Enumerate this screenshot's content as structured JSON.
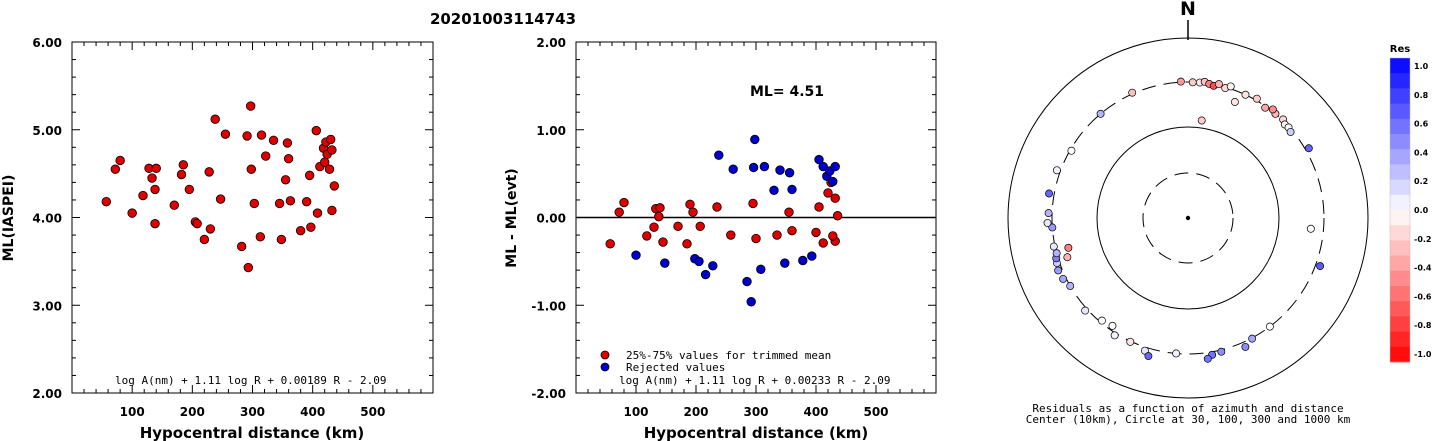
{
  "title": "20201003114743",
  "charts": [
    {
      "type": "scatter",
      "xlabel": "Hypocentral distance (km)",
      "ylabel": "ML(IASPEI)",
      "xlim": [
        0,
        600
      ],
      "ylim": [
        2.0,
        6.0
      ],
      "xticks": [
        "100",
        "200",
        "300",
        "400",
        "500"
      ],
      "yticks": [
        "2.00",
        "3.00",
        "4.00",
        "5.00",
        "6.00"
      ],
      "formula": "log A(nm) + 1.11 log R + 0.00189 R - 2.09",
      "points": [
        [
          57,
          4.18
        ],
        [
          72,
          4.55
        ],
        [
          80,
          4.65
        ],
        [
          100,
          4.05
        ],
        [
          118,
          4.25
        ],
        [
          128,
          4.56
        ],
        [
          133,
          4.45
        ],
        [
          140,
          4.56
        ],
        [
          138,
          3.93
        ],
        [
          138,
          4.32
        ],
        [
          170,
          4.14
        ],
        [
          182,
          4.49
        ],
        [
          185,
          4.6
        ],
        [
          195,
          4.32
        ],
        [
          205,
          3.95
        ],
        [
          208,
          3.93
        ],
        [
          220,
          3.75
        ],
        [
          228,
          4.52
        ],
        [
          230,
          3.87
        ],
        [
          238,
          5.12
        ],
        [
          247,
          4.21
        ],
        [
          255,
          4.95
        ],
        [
          282,
          3.67
        ],
        [
          291,
          4.93
        ],
        [
          293,
          3.43
        ],
        [
          297,
          5.27
        ],
        [
          298,
          4.55
        ],
        [
          303,
          4.16
        ],
        [
          313,
          3.78
        ],
        [
          315,
          4.94
        ],
        [
          322,
          4.7
        ],
        [
          335,
          4.88
        ],
        [
          345,
          4.16
        ],
        [
          348,
          3.75
        ],
        [
          355,
          4.43
        ],
        [
          358,
          4.85
        ],
        [
          360,
          4.67
        ],
        [
          363,
          4.19
        ],
        [
          380,
          3.85
        ],
        [
          390,
          4.18
        ],
        [
          395,
          4.48
        ],
        [
          397,
          3.89
        ],
        [
          406,
          4.99
        ],
        [
          408,
          4.05
        ],
        [
          412,
          4.58
        ],
        [
          418,
          4.79
        ],
        [
          420,
          4.63
        ],
        [
          422,
          4.86
        ],
        [
          424,
          4.72
        ],
        [
          428,
          4.55
        ],
        [
          430,
          4.89
        ],
        [
          432,
          4.77
        ],
        [
          432,
          4.08
        ],
        [
          436,
          4.36
        ]
      ]
    },
    {
      "type": "scatter",
      "xlabel": "Hypocentral distance (km)",
      "ylabel": "ML - ML(evt)",
      "xlim": [
        0,
        600
      ],
      "ylim": [
        -2.0,
        2.0
      ],
      "xticks": [
        "100",
        "200",
        "300",
        "400",
        "500"
      ],
      "yticks": [
        "-2.00",
        "-1.00",
        "0.00",
        "1.00",
        "2.00"
      ],
      "annotation": "ML= 4.51",
      "zero_line": 0.0,
      "formula": "log A(nm) + 1.11 log R + 0.00233 R - 2.09",
      "legend": [
        {
          "label": "25%-75% values for trimmed mean",
          "color": "#dd0000"
        },
        {
          "label": "Rejected values",
          "color": "#0000cc"
        }
      ],
      "series": [
        {
          "name": "25%-75% values for trimmed mean",
          "color": "#dd0000",
          "points": [
            [
              57,
              -0.3
            ],
            [
              72,
              0.06
            ],
            [
              80,
              0.17
            ],
            [
              118,
              -0.21
            ],
            [
              130,
              -0.11
            ],
            [
              133,
              0.1
            ],
            [
              138,
              0.01
            ],
            [
              140,
              0.11
            ],
            [
              145,
              -0.28
            ],
            [
              170,
              -0.1
            ],
            [
              185,
              -0.3
            ],
            [
              190,
              0.15
            ],
            [
              195,
              0.06
            ],
            [
              207,
              -0.1
            ],
            [
              235,
              0.12
            ],
            [
              258,
              -0.2
            ],
            [
              295,
              0.16
            ],
            [
              300,
              -0.24
            ],
            [
              335,
              -0.2
            ],
            [
              355,
              0.06
            ],
            [
              360,
              -0.15
            ],
            [
              400,
              -0.17
            ],
            [
              405,
              0.12
            ],
            [
              412,
              -0.29
            ],
            [
              420,
              0.28
            ],
            [
              425,
              0.4
            ],
            [
              432,
              0.22
            ],
            [
              436,
              0.02
            ],
            [
              432,
              -0.27
            ],
            [
              428,
              -0.21
            ]
          ]
        },
        {
          "name": "Rejected values",
          "color": "#0000cc",
          "points": [
            [
              100,
              -0.43
            ],
            [
              148,
              -0.52
            ],
            [
              198,
              -0.47
            ],
            [
              205,
              -0.5
            ],
            [
              216,
              -0.65
            ],
            [
              228,
              -0.55
            ],
            [
              238,
              0.71
            ],
            [
              262,
              0.55
            ],
            [
              285,
              -0.73
            ],
            [
              292,
              -0.96
            ],
            [
              296,
              0.57
            ],
            [
              298,
              0.89
            ],
            [
              308,
              -0.59
            ],
            [
              314,
              0.58
            ],
            [
              330,
              0.31
            ],
            [
              340,
              0.54
            ],
            [
              348,
              -0.52
            ],
            [
              356,
              0.51
            ],
            [
              360,
              0.32
            ],
            [
              378,
              -0.49
            ],
            [
              393,
              -0.44
            ],
            [
              405,
              0.66
            ],
            [
              412,
              0.58
            ],
            [
              418,
              0.47
            ],
            [
              423,
              0.53
            ],
            [
              428,
              0.41
            ],
            [
              432,
              0.58
            ]
          ]
        }
      ]
    },
    {
      "type": "polar",
      "north_label": "N",
      "caption_line1": "Residuals as a function of azimuth and distance",
      "caption_line2": "Center (10km), Circle at 30, 100, 300 and 1000 km",
      "colorbar_title": "Res",
      "colorbar_ticks": [
        "1.0",
        "0.8",
        "0.6",
        "0.4",
        "0.2",
        "0.0",
        "-0.2",
        "-0.4",
        "-0.6",
        "-0.8",
        "-1.0"
      ],
      "rings_km": [
        30,
        100,
        300,
        1000
      ],
      "stations": [
        {
          "az": 357,
          "dist": 305,
          "res": -0.4
        },
        {
          "az": 2,
          "dist": 298,
          "res": -0.2
        },
        {
          "az": 5,
          "dist": 300,
          "res": -0.1
        },
        {
          "az": 7,
          "dist": 310,
          "res": -0.25
        },
        {
          "az": 9,
          "dist": 298,
          "res": -0.5
        },
        {
          "az": 11,
          "dist": 290,
          "res": -0.7
        },
        {
          "az": 13,
          "dist": 312,
          "res": -0.3
        },
        {
          "az": 16,
          "dist": 294,
          "res": -0.15
        },
        {
          "az": 18,
          "dist": 320,
          "res": -0.05
        },
        {
          "az": 25,
          "dist": 300,
          "res": -0.1
        },
        {
          "az": 30,
          "dist": 315,
          "res": -0.2
        },
        {
          "az": 22,
          "dist": 230,
          "res": -0.1
        },
        {
          "az": 35,
          "dist": 290,
          "res": -0.35
        },
        {
          "az": 40,
          "dist": 300,
          "res": -0.3
        },
        {
          "az": 38,
          "dist": 315,
          "res": -0.45
        },
        {
          "az": 44,
          "dist": 308,
          "res": -0.15
        },
        {
          "az": 46,
          "dist": 290,
          "res": -0.05
        },
        {
          "az": 48,
          "dist": 295,
          "res": -0.02
        },
        {
          "az": 50,
          "dist": 285,
          "res": 0.2
        },
        {
          "az": 60,
          "dist": 330,
          "res": 0.6
        },
        {
          "az": 336,
          "dist": 310,
          "res": -0.25
        },
        {
          "az": 8,
          "dist": 120,
          "res": -0.2
        },
        {
          "az": 95,
          "dist": 220,
          "res": 0.0
        },
        {
          "az": 110,
          "dist": 340,
          "res": 0.65
        },
        {
          "az": 143,
          "dist": 300,
          "res": 0.0
        },
        {
          "az": 152,
          "dist": 305,
          "res": 0.35
        },
        {
          "az": 156,
          "dist": 345,
          "res": 0.45
        },
        {
          "az": 166,
          "dist": 315,
          "res": 0.45
        },
        {
          "az": 170,
          "dist": 325,
          "res": 0.55
        },
        {
          "az": 172,
          "dist": 355,
          "res": 0.55
        },
        {
          "az": 198,
          "dist": 330,
          "res": 0.1
        },
        {
          "az": 196,
          "dist": 370,
          "res": 0.6
        },
        {
          "az": 205,
          "dist": 305,
          "res": -0.1
        },
        {
          "az": 220,
          "dist": 285,
          "res": 0.0
        },
        {
          "az": 228,
          "dist": 320,
          "res": 0.1
        },
        {
          "az": 240,
          "dist": 300,
          "res": 0.3
        },
        {
          "az": 244,
          "dist": 325,
          "res": 0.35
        },
        {
          "az": 248,
          "dist": 335,
          "res": 0.4
        },
        {
          "az": 251,
          "dist": 322,
          "res": 0.2
        },
        {
          "az": 253,
          "dist": 315,
          "res": 0.5
        },
        {
          "az": 255,
          "dist": 300,
          "res": 0.3
        },
        {
          "az": 258,
          "dist": 310,
          "res": 0.1
        },
        {
          "az": 252,
          "dist": 240,
          "res": -0.3
        },
        {
          "az": 256,
          "dist": 220,
          "res": -0.5
        },
        {
          "az": 266,
          "dist": 300,
          "res": 0.4
        },
        {
          "az": 268,
          "dist": 340,
          "res": 0.1
        },
        {
          "az": 272,
          "dist": 330,
          "res": 0.3
        },
        {
          "az": 280,
          "dist": 345,
          "res": 0.6
        },
        {
          "az": 290,
          "dist": 330,
          "res": 0.05
        },
        {
          "az": 300,
          "dist": 290,
          "res": 0.0
        },
        {
          "az": 320,
          "dist": 300,
          "res": 0.3
        },
        {
          "az": 215,
          "dist": 270,
          "res": 0.0
        },
        {
          "az": 212,
          "dist": 320,
          "res": 0.05
        },
        {
          "az": 185,
          "dist": 300,
          "res": 0.05
        }
      ]
    }
  ]
}
